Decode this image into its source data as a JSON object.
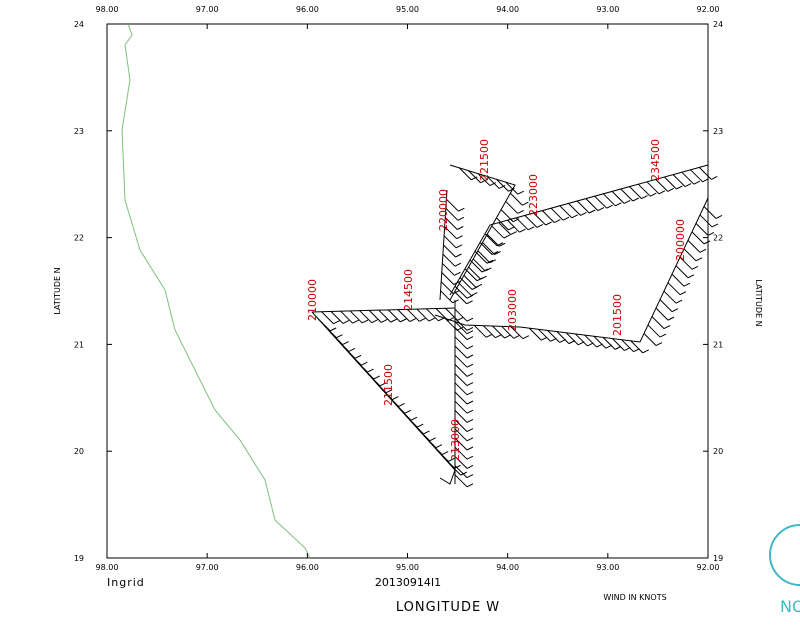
{
  "map": {
    "storm": "Ingrid",
    "flight": "20130914I1",
    "x_axis_label": "LONGITUDE  W",
    "y_axis_label": "LATITUDE  N",
    "wind_units": "WIND IN KNOTS",
    "logo_text": "NO",
    "lon_ticks": [
      "98.00",
      "97.00",
      "96.00",
      "95.00",
      "94.00",
      "93.00",
      "92.00"
    ],
    "lat_ticks": [
      "19",
      "20",
      "21",
      "22",
      "23",
      "24"
    ],
    "time_labels": [
      "210000",
      "214500",
      "211500",
      "213000",
      "220000",
      "221500",
      "223000",
      "234500",
      "200000",
      "201500",
      "203000"
    ]
  }
}
